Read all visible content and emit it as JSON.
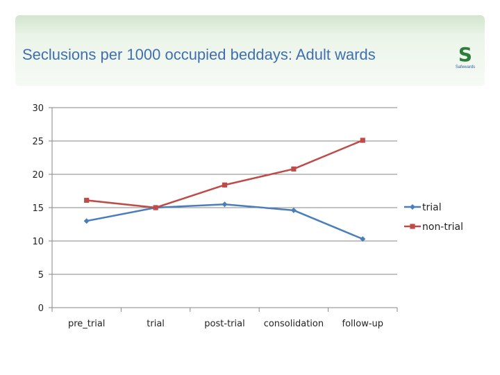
{
  "slide": {
    "title": "Seclusions per 1000 occupied beddays: Adult wards",
    "logo": {
      "icon": "safewards-s-icon",
      "name": "Safewards",
      "sub": ""
    }
  },
  "colors": {
    "trial": "#4a7ebb",
    "non_trial": "#be4b48",
    "title": "#3f6fb0",
    "axis": "#868686"
  },
  "chart_data": {
    "type": "line",
    "title": "",
    "xlabel": "",
    "ylabel": "",
    "categories": [
      "pre_trial",
      "trial",
      "post-trial",
      "consolidation",
      "follow-up"
    ],
    "series": [
      {
        "name": "trial",
        "marker": "diamond",
        "values": [
          13.0,
          15.0,
          15.5,
          14.6,
          10.3
        ]
      },
      {
        "name": "non-trial",
        "marker": "square",
        "values": [
          16.1,
          15.0,
          18.4,
          20.8,
          25.1
        ]
      }
    ],
    "ylim": [
      0,
      30
    ],
    "yticks": [
      0,
      5,
      10,
      15,
      20,
      25,
      30
    ],
    "grid": true,
    "legend": "right"
  }
}
